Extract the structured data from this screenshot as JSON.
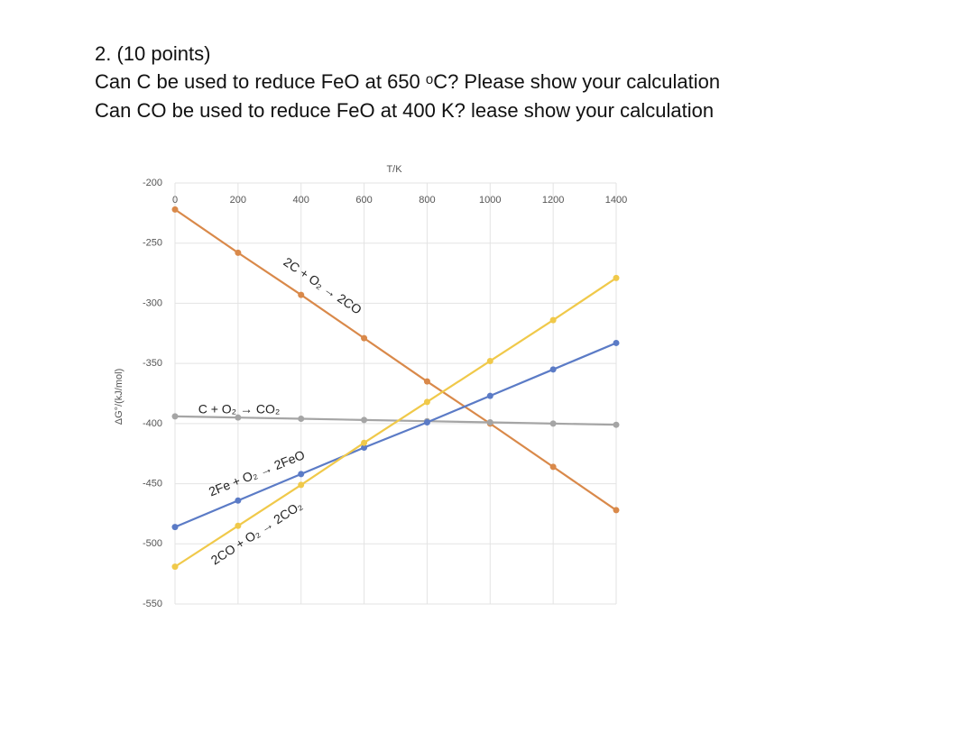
{
  "question": {
    "number": "2. (10 points)",
    "lines": [
      "Can C be used to reduce FeO at 650 ᵒC? Please show your calculation",
      "Can CO be used to reduce FeO at 400 K? lease show your calculation"
    ]
  },
  "chart_data": {
    "type": "line",
    "x_label": "T/K",
    "y_label": "ΔG°/(kJ/mol)",
    "x": [
      0,
      200,
      400,
      600,
      800,
      1000,
      1200,
      1400
    ],
    "xlim": [
      0,
      1400
    ],
    "xticks": [
      0,
      200,
      400,
      600,
      800,
      1000,
      1200,
      1400
    ],
    "ylim": [
      -550,
      -200
    ],
    "yticks": [
      -200,
      -250,
      -300,
      -350,
      -400,
      -450,
      -500,
      -550
    ],
    "grid": true,
    "series": [
      {
        "name": "2C + O₂ → 2CO",
        "color": "#d9894a",
        "values": [
          -222,
          -258,
          -293,
          -329,
          -365,
          -400,
          -436,
          -472
        ]
      },
      {
        "name": "C + O₂ → CO₂",
        "color": "#a5a5a5",
        "values": [
          -394,
          -395,
          -396,
          -397,
          -398,
          -399,
          -400,
          -401
        ]
      },
      {
        "name": "2Fe + O₂ → 2FeO",
        "color": "#5b7bc6",
        "values": [
          -486,
          -464,
          -442,
          -420,
          -399,
          -377,
          -355,
          -333
        ]
      },
      {
        "name": "2CO + O₂ → 2CO₂",
        "color": "#f0c94a",
        "values": [
          -519,
          -485,
          -451,
          -416,
          -382,
          -348,
          -314,
          -279
        ]
      }
    ]
  }
}
